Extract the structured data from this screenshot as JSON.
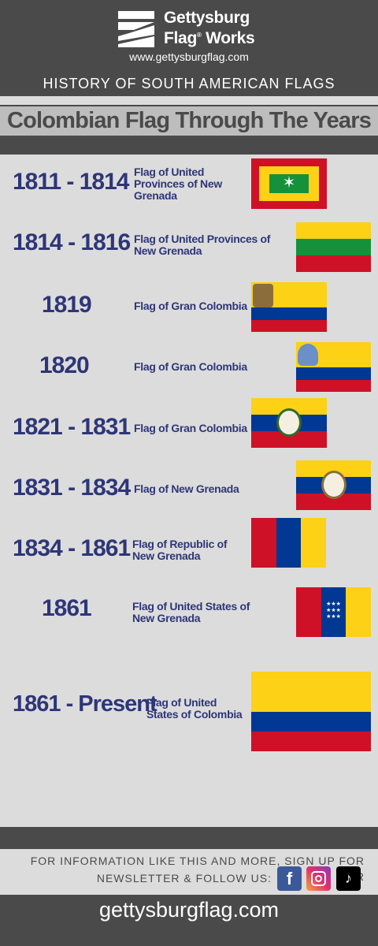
{
  "header": {
    "brand_line1": "Gettysburg",
    "brand_line2": "Flag",
    "brand_reg": "®",
    "brand_line2b": "Works",
    "url": "www.gettysburgflag.com",
    "subtitle": "HISTORY OF SOUTH AMERICAN FLAGS"
  },
  "title": "Colombian Flag Through The Years",
  "entries": [
    {
      "years": "1811 - 1814",
      "desc": "Flag of United Provinces of New Grenada"
    },
    {
      "years": "1814 - 1816",
      "desc": "Flag of United Provinces of New Grenada"
    },
    {
      "years": "1819",
      "desc": "Flag of Gran Colombia"
    },
    {
      "years": "1820",
      "desc": "Flag of Gran Colombia"
    },
    {
      "years": "1821 - 1831",
      "desc": "Flag of Gran Colombia"
    },
    {
      "years": "1831 - 1834",
      "desc": "Flag of New Grenada"
    },
    {
      "years": "1834 - 1861",
      "desc": "Flag of Republic of New Grenada"
    },
    {
      "years": "1861",
      "desc": "Flag of United States of New Grenada"
    },
    {
      "years": "1861 - Present",
      "desc": "Flag of United States of Colombia"
    }
  ],
  "footer": {
    "newsletter_line1": "FOR INFORMATION LIKE THIS AND MORE, SIGN UP FOR OUR",
    "newsletter_line2": "NEWSLETTER & FOLLOW US:",
    "social": [
      "facebook-icon",
      "instagram-icon",
      "tiktok-icon"
    ],
    "bottom_url": "gettysburgflag.com"
  },
  "colors": {
    "yellow": "#fcd116",
    "blue": "#003893",
    "red": "#ce1126",
    "green": "#15913c",
    "navy_text": "#2e3677",
    "dark_gray": "#4a4a4a"
  }
}
